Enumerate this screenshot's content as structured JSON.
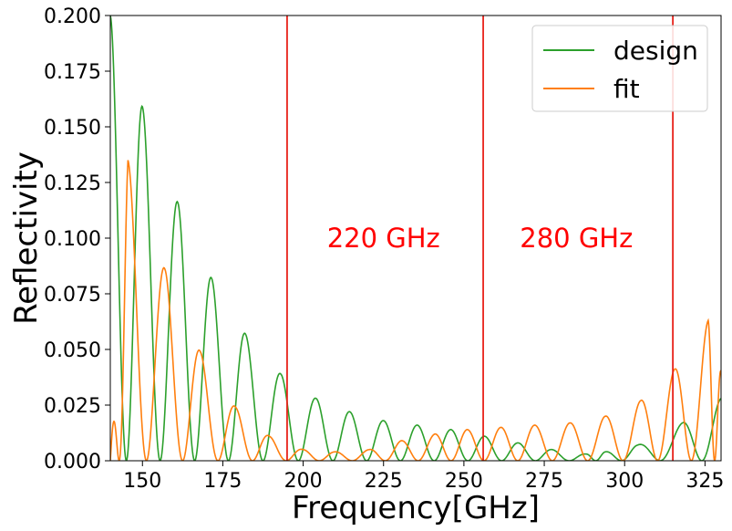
{
  "chart_data": {
    "type": "line",
    "xlabel": "Frequency[GHz]",
    "ylabel": "Reflectivity",
    "xlim": [
      140,
      330
    ],
    "ylim": [
      0,
      0.2
    ],
    "x_ticks": [
      150,
      175,
      200,
      225,
      250,
      275,
      300,
      325
    ],
    "x_tick_labels": [
      "150",
      "175",
      "200",
      "225",
      "250",
      "275",
      "300",
      "325"
    ],
    "y_ticks": [
      0,
      0.025,
      0.05,
      0.075,
      0.1,
      0.125,
      0.15,
      0.175,
      0.2
    ],
    "y_tick_labels": [
      "0.000",
      "0.025",
      "0.050",
      "0.075",
      "0.100",
      "0.125",
      "0.150",
      "0.175",
      "0.200"
    ],
    "grid": false,
    "legend_position": "top-right",
    "series": [
      {
        "name": "design",
        "color": "#2ca02c",
        "peaks": [
          [
            140,
            0.2
          ],
          [
            150,
            0.159
          ],
          [
            161,
            0.116
          ],
          [
            171.5,
            0.082
          ],
          [
            182,
            0.057
          ],
          [
            193,
            0.039
          ],
          [
            204,
            0.028
          ],
          [
            214.5,
            0.022
          ],
          [
            225,
            0.018
          ],
          [
            235.5,
            0.016
          ],
          [
            246,
            0.014
          ],
          [
            256.5,
            0.011
          ],
          [
            267,
            0.008
          ],
          [
            277.5,
            0.005
          ],
          [
            288,
            0.003
          ],
          [
            294,
            0.004
          ],
          [
            304,
            0.007
          ],
          [
            318,
            0.017
          ],
          [
            330,
            0.028
          ]
        ]
      },
      {
        "name": "fit",
        "color": "#ff7f0e",
        "peaks": [
          [
            140,
            0.0
          ],
          [
            145.5,
            0.135
          ],
          [
            157,
            0.086
          ],
          [
            168,
            0.049
          ],
          [
            179,
            0.024
          ],
          [
            189.5,
            0.011
          ],
          [
            200,
            0.005
          ],
          [
            210,
            0.004
          ],
          [
            220.5,
            0.005
          ],
          [
            230.5,
            0.009
          ],
          [
            241,
            0.012
          ],
          [
            251,
            0.014
          ],
          [
            261.5,
            0.015
          ],
          [
            272,
            0.016
          ],
          [
            283,
            0.017
          ],
          [
            294,
            0.02
          ],
          [
            305,
            0.027
          ],
          [
            315.5,
            0.041
          ],
          [
            326,
            0.063
          ],
          [
            330,
            0.04
          ]
        ]
      }
    ],
    "vertical_lines": [
      {
        "x": 195,
        "color": "#e8221a"
      },
      {
        "x": 256,
        "color": "#e8221a"
      },
      {
        "x": 315,
        "color": "#e8221a"
      }
    ],
    "annotations": [
      {
        "text": "220 GHz",
        "x": 225,
        "y": 0.1,
        "color": "#ff0000"
      },
      {
        "text": "280 GHz",
        "x": 285,
        "y": 0.1,
        "color": "#ff0000"
      }
    ]
  }
}
